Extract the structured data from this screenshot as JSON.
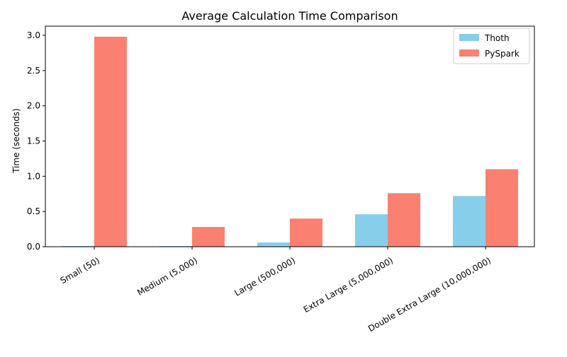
{
  "chart_data": {
    "type": "bar",
    "title": "Average Calculation Time Comparison",
    "xlabel": "",
    "ylabel": "Time (seconds)",
    "categories": [
      "Small (50)",
      "Medium (5,000)",
      "Large (500,000)",
      "Extra Large (5,000,000)",
      "Double Extra Large (10,000,000)"
    ],
    "series": [
      {
        "name": "Thoth",
        "color": "#87ceeb",
        "values": [
          0.01,
          0.01,
          0.06,
          0.46,
          0.72
        ]
      },
      {
        "name": "PySpark",
        "color": "#fa8072",
        "values": [
          2.98,
          0.28,
          0.4,
          0.76,
          1.1
        ]
      }
    ],
    "ylim": [
      0,
      3.13
    ],
    "yticks": [
      "0.0",
      "0.5",
      "1.0",
      "1.5",
      "2.0",
      "2.5",
      "3.0"
    ],
    "grid": false,
    "legend_position": "top-right"
  }
}
